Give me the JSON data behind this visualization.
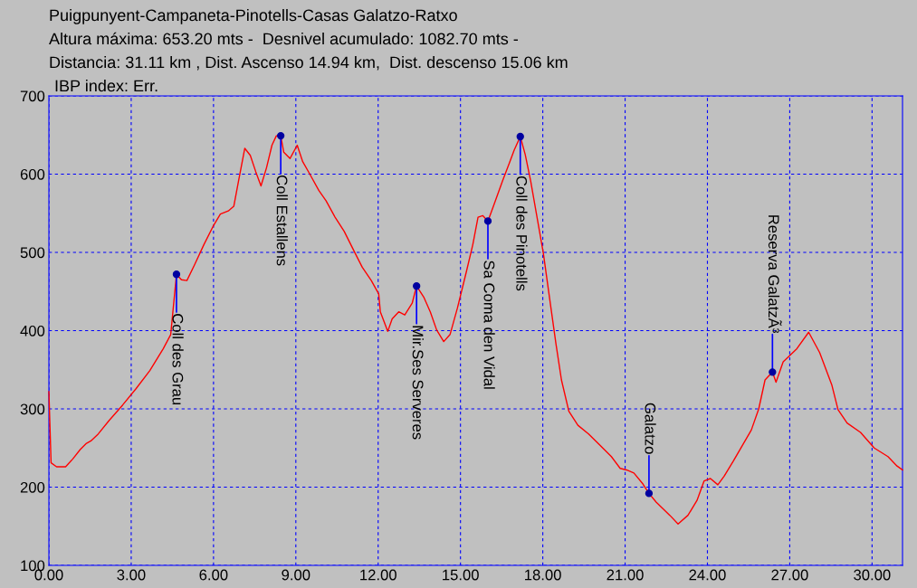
{
  "chart_data": {
    "type": "line",
    "title": "Puigpunyent-Campaneta-Pinotells-Casas Galatzo-Ratxo",
    "subtitle": "Altura máxima: 653.20 mts -  Desnivel acumulado: 1082.70 mts -\nDistancia: 31.11 km , Dist. Ascenso 14.94 km,  Dist. descenso 15.06 km",
    "x": [
      0,
      0.08,
      0.28,
      0.61,
      0.87,
      1.14,
      1.37,
      1.53,
      1.8,
      2.19,
      2.69,
      3.18,
      3.68,
      4.17,
      4.44,
      4.65,
      4.83,
      5.03,
      5.32,
      5.65,
      5.98,
      6.25,
      6.54,
      6.74,
      6.91,
      7.14,
      7.34,
      7.54,
      7.73,
      7.93,
      8.13,
      8.29,
      8.45,
      8.56,
      8.79,
      9.05,
      9.25,
      9.51,
      9.84,
      10.1,
      10.43,
      10.76,
      11.16,
      11.42,
      11.75,
      12.02,
      12.08,
      12.35,
      12.51,
      12.75,
      12.97,
      13.24,
      13.4,
      13.66,
      13.9,
      14.13,
      14.39,
      14.62,
      14.89,
      15.22,
      15.45,
      15.64,
      15.81,
      16.0,
      16.2,
      16.53,
      16.8,
      16.96,
      17.18,
      17.36,
      17.56,
      17.79,
      18.02,
      18.25,
      18.48,
      18.68,
      18.95,
      19.28,
      19.67,
      20.07,
      20.5,
      20.82,
      21.05,
      21.32,
      21.65,
      21.87,
      22.13,
      22.63,
      22.93,
      23.29,
      23.62,
      23.88,
      24.11,
      24.38,
      24.61,
      24.94,
      25.27,
      25.6,
      25.87,
      26.1,
      26.37,
      26.5,
      26.76,
      27.26,
      27.69,
      28.09,
      28.53,
      28.76,
      29.09,
      29.58,
      30.08,
      30.58,
      30.91,
      31.11
    ],
    "series": [
      {
        "color": "#ff0000",
        "values": [
          322,
          231,
          226,
          226,
          236,
          248,
          256,
          259,
          268,
          285,
          305,
          326,
          349,
          377,
          395,
          472,
          465,
          464,
          485,
          510,
          533,
          549,
          553,
          559,
          591,
          633,
          624,
          603,
          585,
          608,
          637,
          649,
          649,
          628,
          620,
          637,
          616,
          600,
          579,
          566,
          545,
          527,
          499,
          481,
          464,
          447,
          424,
          399,
          415,
          424,
          420,
          435,
          457,
          443,
          424,
          401,
          386,
          395,
          429,
          476,
          510,
          545,
          547,
          540,
          559,
          591,
          616,
          631,
          648,
          625,
          591,
          545,
          499,
          441,
          383,
          337,
          297,
          279,
          268,
          254,
          239,
          224,
          222,
          218,
          204,
          192,
          181,
          164,
          153,
          164,
          183,
          208,
          211,
          203,
          214,
          233,
          253,
          273,
          300,
          337,
          347,
          334,
          360,
          377,
          398,
          372,
          331,
          299,
          282,
          270,
          250,
          239,
          227,
          222
        ]
      }
    ],
    "xlim": [
      0,
      31.11
    ],
    "ylim": [
      100,
      700
    ],
    "xticks": [
      {
        "value": 0,
        "label": "0.00"
      },
      {
        "value": 3,
        "label": "3.00"
      },
      {
        "value": 6,
        "label": "6.00"
      },
      {
        "value": 9,
        "label": "9.00"
      },
      {
        "value": 12,
        "label": "12.00"
      },
      {
        "value": 15,
        "label": "15.00"
      },
      {
        "value": 18,
        "label": "18.00"
      },
      {
        "value": 21,
        "label": "21.00"
      },
      {
        "value": 24,
        "label": "24.00"
      },
      {
        "value": 27,
        "label": "27.00"
      },
      {
        "value": 30,
        "label": "30.00"
      }
    ],
    "yticks": [
      100,
      200,
      300,
      400,
      500,
      600,
      700
    ],
    "grid": true,
    "legend": false,
    "marker": "none",
    "line_style": "solid",
    "annotations": [
      "IBP index: Err.",
      {
        "text": "Coll des Grau",
        "x": 4.65,
        "y": 472
      },
      {
        "text": "Coll Estallens",
        "x": 8.45,
        "y": 649
      },
      {
        "text": "Mir.Ses Serveres",
        "x": 13.4,
        "y": 457
      },
      {
        "text": "Sa Coma den Vidal",
        "x": 16.0,
        "y": 540
      },
      {
        "text": "Coll des Pinotells",
        "x": 17.18,
        "y": 648
      },
      {
        "text": "Galatzo",
        "x": 21.87,
        "y": 192
      },
      {
        "text": "Reserva GalatzÃ³",
        "x": 26.37,
        "y": 347
      }
    ]
  }
}
